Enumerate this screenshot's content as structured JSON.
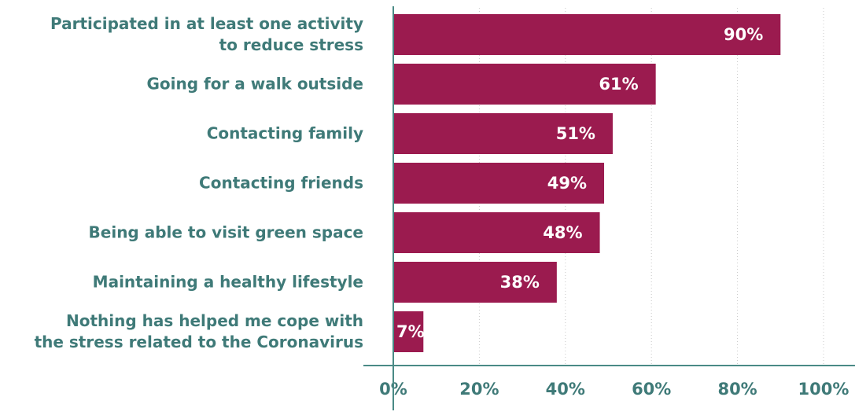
{
  "chart_data": {
    "type": "barh",
    "categories": [
      "Participated in at least one activity\nto reduce stress",
      "Going for a walk outside",
      "Contacting family",
      "Contacting friends",
      "Being able to visit green space",
      "Maintaining a healthy lifestyle",
      "Nothing has helped me cope with\nthe stress related to the Coronavirus"
    ],
    "values": [
      90,
      61,
      51,
      49,
      48,
      38,
      7
    ],
    "value_labels": [
      "90%",
      "61%",
      "51%",
      "49%",
      "48%",
      "38%",
      "7%"
    ],
    "color": "#9b1b4f",
    "xlim": [
      0,
      100
    ],
    "xticks": [
      {
        "value": 0,
        "label": "0%"
      },
      {
        "value": 20,
        "label": "20%"
      },
      {
        "value": 40,
        "label": "40%"
      },
      {
        "value": 60,
        "label": "60%"
      },
      {
        "value": 80,
        "label": "80%"
      },
      {
        "value": 100,
        "label": "100%"
      }
    ],
    "grid": true
  }
}
